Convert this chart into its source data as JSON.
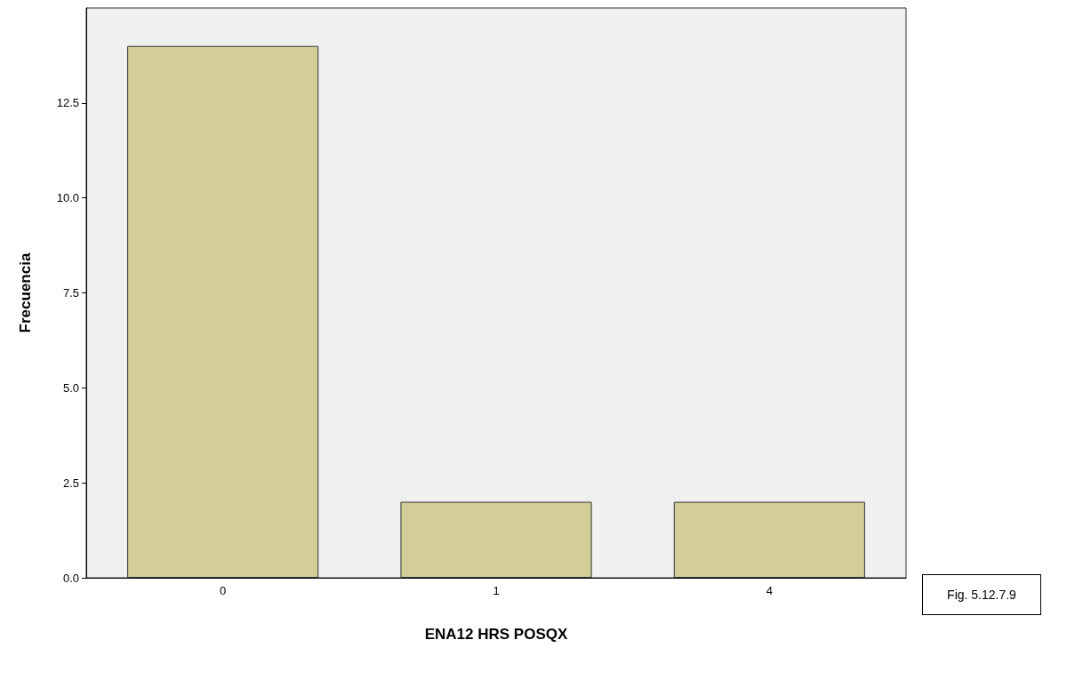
{
  "chart_data": {
    "type": "bar",
    "xlabel": "ENA12 HRS POSQX",
    "ylabel": "Frecuencia",
    "categories": [
      "0",
      "1",
      "4"
    ],
    "values": [
      14,
      2,
      2
    ],
    "color": "#d3ce97",
    "ylim": [
      0,
      15
    ],
    "yticks": [
      {
        "value": 0,
        "label": "0.0"
      },
      {
        "value": 2.5,
        "label": "2.5"
      },
      {
        "value": 5,
        "label": "5.0"
      },
      {
        "value": 7.5,
        "label": "7.5"
      },
      {
        "value": 10,
        "label": "10.0"
      },
      {
        "value": 12.5,
        "label": "12.5"
      }
    ],
    "grid": false,
    "annotations": [
      "Fig. 5.12.7.9"
    ]
  }
}
